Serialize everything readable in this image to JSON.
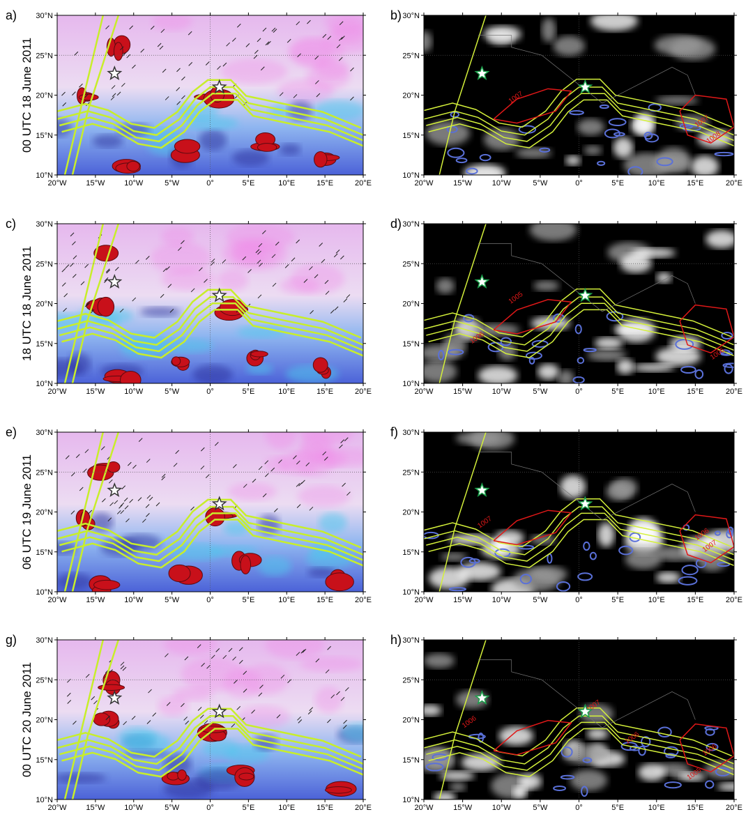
{
  "rows": [
    {
      "time": "00 UTC 18 June 2011",
      "left": {
        "label": "a)"
      },
      "right": {
        "label": "b)",
        "contour_labels": [
          1007,
          1007,
          1008
        ]
      }
    },
    {
      "time": "18 UTC 18 June 2011",
      "left": {
        "label": "c)"
      },
      "right": {
        "label": "d)",
        "contour_labels": [
          1005,
          1006,
          1006
        ]
      }
    },
    {
      "time": "06 UTC 19 June 2011",
      "left": {
        "label": "e)"
      },
      "right": {
        "label": "f)",
        "contour_labels": [
          1007,
          1006,
          1007
        ]
      }
    },
    {
      "time": "00 UTC 20 June 2011",
      "left": {
        "label": "g)"
      },
      "right": {
        "label": "h)",
        "contour_labels": [
          1007,
          1006,
          1006,
          1005,
          1006
        ]
      }
    }
  ],
  "lon_ticks": [
    {
      "value": -20,
      "label": "20°W"
    },
    {
      "value": -15,
      "label": "15°W"
    },
    {
      "value": -10,
      "label": "10°W"
    },
    {
      "value": -5,
      "label": "5°W"
    },
    {
      "value": 0,
      "label": "0°"
    },
    {
      "value": 5,
      "label": "5°E"
    },
    {
      "value": 10,
      "label": "10°E"
    },
    {
      "value": 15,
      "label": "15°E"
    },
    {
      "value": 20,
      "label": "20°E"
    }
  ],
  "lat_ticks": [
    {
      "value": 10,
      "label": "10°N"
    },
    {
      "value": 15,
      "label": "15°N"
    },
    {
      "value": 20,
      "label": "20°N"
    },
    {
      "value": 25,
      "label": "25°N"
    },
    {
      "value": 30,
      "label": "30°N"
    }
  ]
}
